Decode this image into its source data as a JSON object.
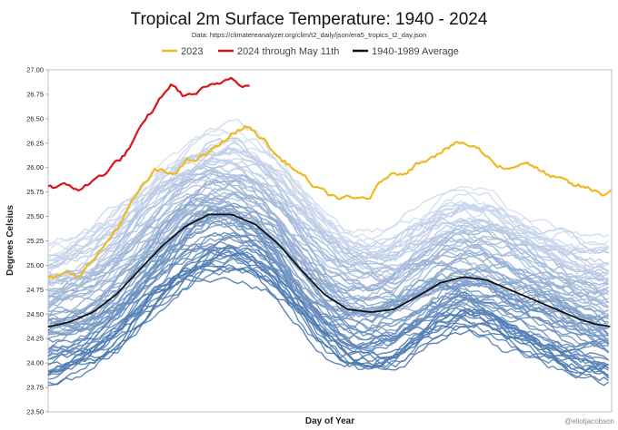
{
  "chart_data": {
    "type": "line",
    "title": "Tropical 2m Surface Temperature: 1940 - 2024",
    "subtitle": "Data: https://climatereanalyzer.org/clim/t2_daily/json/era5_tropics_t2_day.json",
    "xlabel": "Day of Year",
    "ylabel": "Degrees Celsius",
    "xlim": [
      1,
      366
    ],
    "ylim": [
      23.5,
      27.0
    ],
    "yticks": [
      "23.50",
      "23.75",
      "24.00",
      "24.25",
      "24.50",
      "24.75",
      "25.00",
      "25.25",
      "25.50",
      "25.75",
      "26.00",
      "26.25",
      "26.50",
      "26.75",
      "27.00"
    ],
    "legend_position": "top",
    "grid": false,
    "credit": "@eliotjacobson",
    "series": [
      {
        "name": "2023",
        "color": "#f0b921",
        "x": [
          1,
          10,
          20,
          30,
          40,
          50,
          60,
          70,
          80,
          90,
          100,
          110,
          120,
          130,
          140,
          150,
          160,
          170,
          180,
          190,
          200,
          210,
          220,
          230,
          240,
          250,
          260,
          270,
          280,
          290,
          300,
          310,
          320,
          330,
          340,
          350,
          360,
          366
        ],
        "y": [
          24.85,
          24.88,
          24.9,
          25.05,
          25.25,
          25.5,
          25.75,
          25.95,
          25.92,
          26.05,
          26.1,
          26.2,
          26.35,
          26.42,
          26.3,
          26.1,
          26.0,
          25.85,
          25.72,
          25.68,
          25.65,
          25.7,
          25.9,
          25.95,
          26.05,
          26.15,
          26.22,
          26.25,
          26.18,
          26.05,
          26.0,
          26.08,
          25.95,
          25.88,
          25.8,
          25.78,
          25.72,
          25.78
        ]
      },
      {
        "name": "2024 through May 11th",
        "color": "#d9141b",
        "x": [
          1,
          10,
          20,
          30,
          40,
          50,
          60,
          70,
          80,
          90,
          100,
          110,
          120,
          132
        ],
        "y": [
          25.82,
          25.8,
          25.78,
          25.85,
          25.98,
          26.12,
          26.35,
          26.6,
          26.85,
          26.72,
          26.78,
          26.82,
          26.93,
          26.85
        ]
      },
      {
        "name": "1940-1989 Average",
        "color": "#111111",
        "x": [
          1,
          15,
          30,
          45,
          60,
          75,
          90,
          105,
          120,
          135,
          150,
          165,
          180,
          195,
          210,
          225,
          240,
          255,
          270,
          285,
          300,
          315,
          330,
          345,
          355,
          366
        ],
        "y": [
          24.37,
          24.42,
          24.52,
          24.7,
          24.95,
          25.2,
          25.4,
          25.52,
          25.52,
          25.42,
          25.22,
          24.95,
          24.7,
          24.55,
          24.52,
          24.55,
          24.68,
          24.82,
          24.88,
          24.85,
          24.75,
          24.65,
          24.55,
          24.45,
          24.4,
          24.37
        ]
      }
    ]
  }
}
